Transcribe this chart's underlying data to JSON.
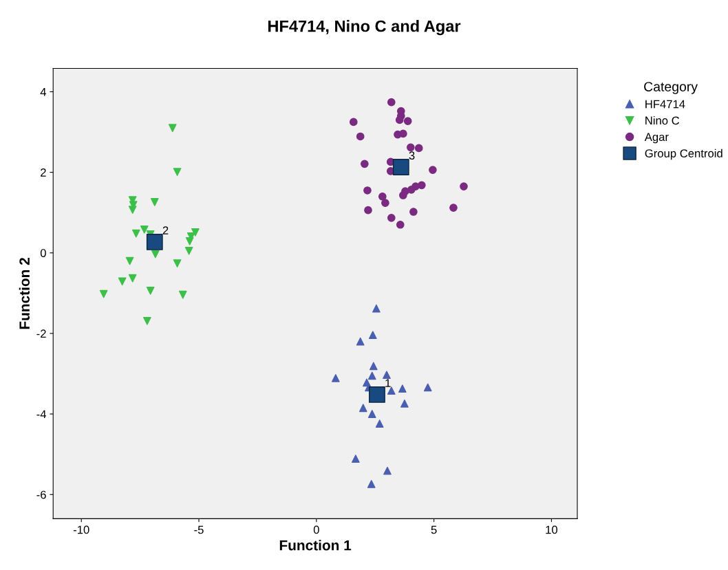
{
  "chart_data": {
    "type": "scatter",
    "title": "HF4714, Nino C and Agar",
    "xlabel": "Function 1",
    "ylabel": "Function 2",
    "legend_title": "Category",
    "legend": "right",
    "xlim": [
      -11.2,
      11.1
    ],
    "ylim": [
      -6.6,
      4.58
    ],
    "xticks": [
      -10,
      -5,
      0,
      5,
      10
    ],
    "yticks": [
      -6,
      -4,
      -2,
      0,
      2,
      4
    ],
    "grid": false,
    "series": [
      {
        "name": "HF4714",
        "color": "#4a5fb0",
        "marker": "triangle",
        "x": [
          2.55,
          2.4,
          1.87,
          2.43,
          2.37,
          2.99,
          0.82,
          2.14,
          2.23,
          3.19,
          3.66,
          4.74,
          3.75,
          1.99,
          2.37,
          2.69,
          1.67,
          3.02,
          2.34
        ],
        "values": [
          -1.38,
          -2.04,
          -2.2,
          -2.81,
          -3.05,
          -3.03,
          -3.11,
          -3.22,
          -3.34,
          -3.42,
          -3.37,
          -3.34,
          -3.74,
          -3.85,
          -4.0,
          -4.24,
          -5.11,
          -5.41,
          -5.74
        ]
      },
      {
        "name": "Nino C",
        "color": "#3cc04a",
        "marker": "triangle_down",
        "x": [
          -6.12,
          -5.92,
          -7.82,
          -7.79,
          -7.82,
          -6.88,
          -7.32,
          -7.67,
          -7.06,
          -5.15,
          -5.33,
          -5.39,
          -5.42,
          -6.85,
          -7.94,
          -5.92,
          -7.82,
          -8.26,
          -7.06,
          -9.05,
          -5.68,
          -7.2
        ],
        "values": [
          3.1,
          2.01,
          1.31,
          1.19,
          1.07,
          1.26,
          0.58,
          0.48,
          0.46,
          0.51,
          0.41,
          0.29,
          0.05,
          -0.03,
          -0.2,
          -0.26,
          -0.63,
          -0.71,
          -0.94,
          -1.02,
          -1.04,
          -1.69
        ]
      },
      {
        "name": "Agar",
        "color": "#7a2a80",
        "marker": "circle",
        "x": [
          3.19,
          3.6,
          3.6,
          3.54,
          3.89,
          1.58,
          1.87,
          3.46,
          3.69,
          4.01,
          4.36,
          3.16,
          2.05,
          3.16,
          4.95,
          6.27,
          4.48,
          4.22,
          4.04,
          3.78,
          3.69,
          2.17,
          2.81,
          2.93,
          2.2,
          4.13,
          5.83,
          3.19,
          3.57
        ],
        "values": [
          3.74,
          3.52,
          3.4,
          3.3,
          3.27,
          3.25,
          2.89,
          2.94,
          2.96,
          2.62,
          2.6,
          2.26,
          2.21,
          2.03,
          2.06,
          1.65,
          1.68,
          1.65,
          1.57,
          1.53,
          1.43,
          1.55,
          1.4,
          1.24,
          1.06,
          1.02,
          1.12,
          0.87,
          0.7
        ]
      },
      {
        "name": "Group Centroid",
        "color": "#184a80",
        "marker": "square",
        "x": [
          2.58,
          -6.88,
          3.6
        ],
        "values": [
          -3.52,
          0.27,
          2.13
        ]
      }
    ],
    "annotations": [
      {
        "text": "1",
        "x": 2.58,
        "y": -3.52
      },
      {
        "text": "2",
        "x": -6.88,
        "y": 0.27
      },
      {
        "text": "3",
        "x": 3.6,
        "y": 2.13
      }
    ]
  }
}
